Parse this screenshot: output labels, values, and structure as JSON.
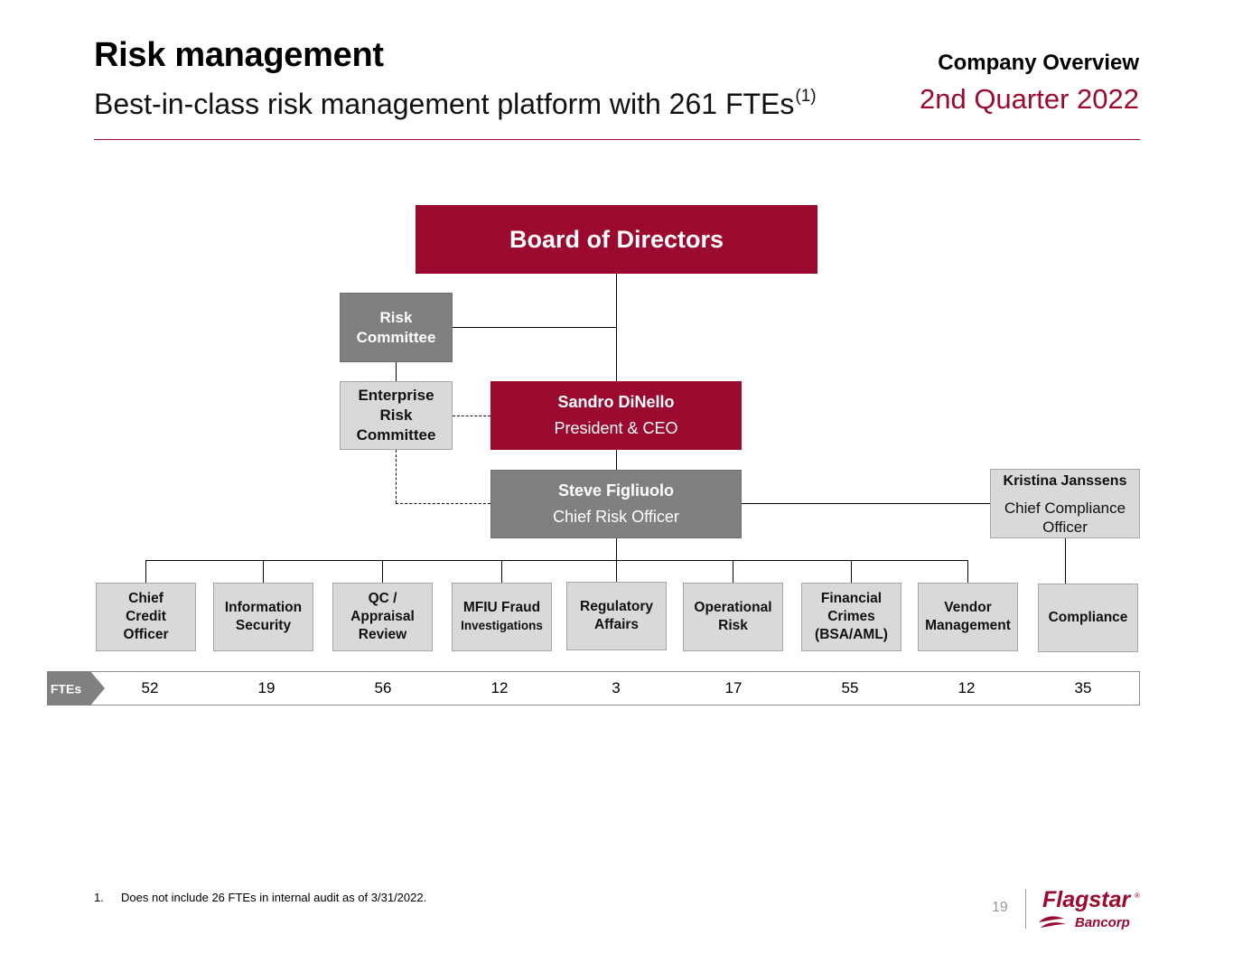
{
  "header": {
    "title": "Risk management",
    "subtitle": "Best-in-class risk management platform with 261 FTEs",
    "subtitle_footnote_ref": "(1)",
    "section": "Company Overview",
    "period": "2nd Quarter 2022"
  },
  "org": {
    "board": "Board of Directors",
    "risk_committee": [
      "Risk",
      "Committee"
    ],
    "enterprise_risk_committee": [
      "Enterprise",
      "Risk",
      "Committee"
    ],
    "ceo": {
      "name": "Sandro DiNello",
      "role": "President & CEO"
    },
    "cro": {
      "name": "Steve Figliuolo",
      "role": "Chief Risk Officer"
    },
    "cco": {
      "name": "Kristina Janssens",
      "role": "Chief Compliance Officer"
    },
    "departments": [
      {
        "lines": [
          "Chief",
          "Credit",
          "Officer"
        ],
        "ftes": "52"
      },
      {
        "lines": [
          "Information",
          "Security"
        ],
        "ftes": "19"
      },
      {
        "lines": [
          "QC /",
          "Appraisal",
          "Review"
        ],
        "ftes": "56"
      },
      {
        "lines": [
          "MFIU Fraud"
        ],
        "small": "Investigations",
        "ftes": "12"
      },
      {
        "lines": [
          "Regulatory",
          "Affairs"
        ],
        "ftes": "3"
      },
      {
        "lines": [
          "Operational",
          "Risk"
        ],
        "ftes": "17"
      },
      {
        "lines": [
          "Financial",
          "Crimes",
          "(BSA/AML)"
        ],
        "ftes": "55"
      },
      {
        "lines": [
          "Vendor",
          "Management"
        ],
        "ftes": "12"
      },
      {
        "lines": [
          "Compliance"
        ],
        "ftes": "35"
      }
    ]
  },
  "fte_label": "FTEs",
  "footnote": {
    "number": "1.",
    "text": "Does not include 26 FTEs in internal audit as of 3/31/2022."
  },
  "page_number": "19",
  "logo": {
    "brand": "Flagstar",
    "sub": "Bancorp",
    "mark": "®"
  },
  "colors": {
    "accent": "#9b0a2e",
    "dark_box": "#808080",
    "light_box": "#d9d9d9"
  }
}
